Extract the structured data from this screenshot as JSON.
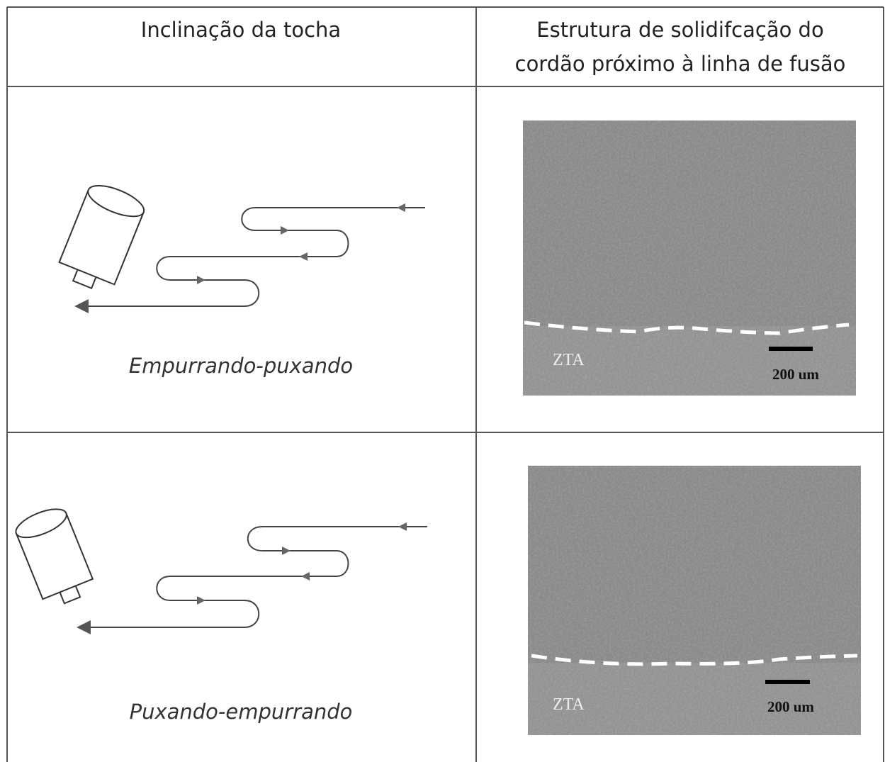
{
  "table": {
    "header": [
      "Inclinação da tocha",
      [
        "Estrutura de solidifcação do",
        "cordão próximo à linha de fusão"
      ]
    ],
    "rows": [
      {
        "caption": "Empurrando-puxando",
        "zone_label": "ZTA",
        "scale_label": "200 um"
      },
      {
        "caption": "Puxando-empurrando",
        "zone_label": "ZTA",
        "scale_label": "200 um"
      }
    ]
  }
}
